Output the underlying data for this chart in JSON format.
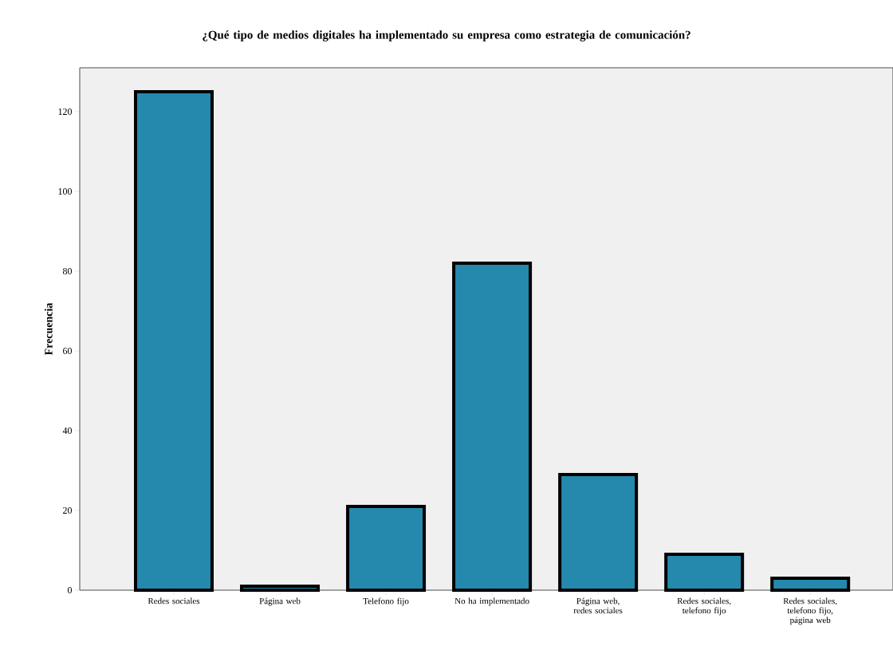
{
  "chart_data": {
    "type": "bar",
    "title": "¿Qué tipo de medios digitales ha implementado su empresa como estrategia de comunicación?",
    "ylabel": "Frecuencia",
    "categories": [
      "Redes sociales",
      "Página web",
      "Telefono fijo",
      "No ha implementado",
      "Página web, redes sociales",
      "Redes sociales, telefono fijo",
      "Redes sociales, telefono fijo, página web"
    ],
    "values": [
      125,
      1,
      21,
      82,
      29,
      9,
      3
    ],
    "color": "#2589ad",
    "ylim": [
      0,
      131
    ],
    "yticks": [
      0,
      20,
      40,
      60,
      80,
      100,
      120
    ],
    "grid": false
  }
}
